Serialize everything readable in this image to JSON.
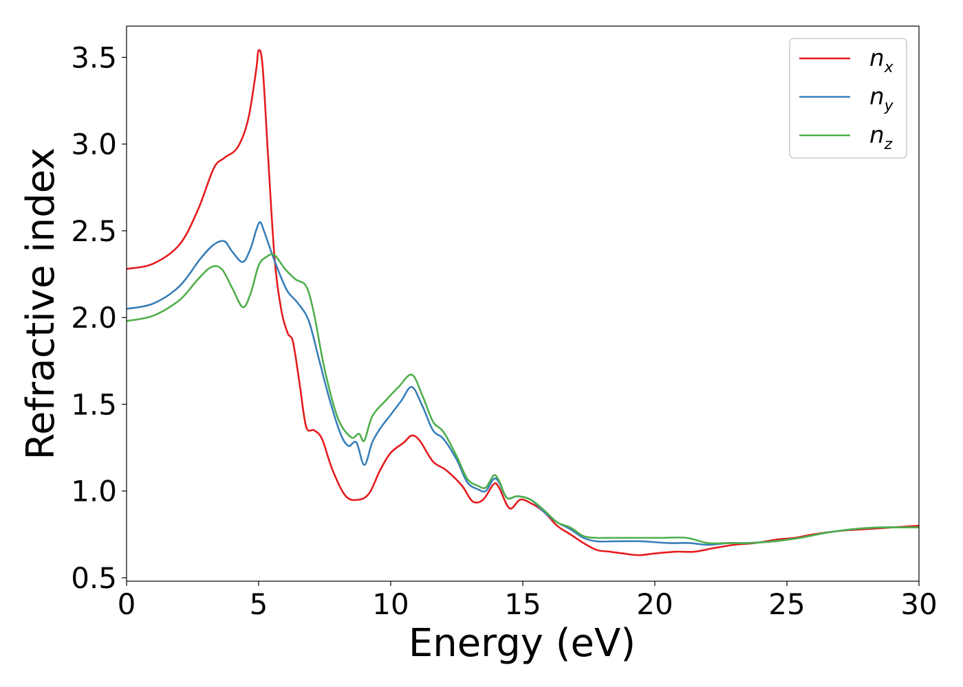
{
  "chart_data": {
    "type": "line",
    "xlabel": "Energy (eV)",
    "ylabel": "Refractive index",
    "xlim": [
      0,
      30
    ],
    "ylim": [
      0.48,
      3.68
    ],
    "x_ticks": [
      0,
      5,
      10,
      15,
      20,
      25,
      30
    ],
    "x_tick_labels": [
      "0",
      "5",
      "10",
      "15",
      "20",
      "25",
      "30"
    ],
    "y_ticks": [
      0.5,
      1.0,
      1.5,
      2.0,
      2.5,
      3.0,
      3.5
    ],
    "y_tick_labels": [
      "0.5",
      "1.0",
      "1.5",
      "2.0",
      "2.5",
      "3.0",
      "3.5"
    ],
    "grid": false,
    "legend_position": "top-right",
    "series": [
      {
        "name": "n_x",
        "label_main": "n",
        "label_sub": "x",
        "color": "#e41a1c",
        "points": [
          [
            0,
            2.28
          ],
          [
            1,
            2.31
          ],
          [
            2,
            2.42
          ],
          [
            2.7,
            2.62
          ],
          [
            3.3,
            2.86
          ],
          [
            3.7,
            2.92
          ],
          [
            4.2,
            2.98
          ],
          [
            4.6,
            3.14
          ],
          [
            4.9,
            3.42
          ],
          [
            5.0,
            3.54
          ],
          [
            5.15,
            3.45
          ],
          [
            5.35,
            2.95
          ],
          [
            5.6,
            2.35
          ],
          [
            5.85,
            2.05
          ],
          [
            6.1,
            1.91
          ],
          [
            6.3,
            1.86
          ],
          [
            6.55,
            1.62
          ],
          [
            6.8,
            1.37
          ],
          [
            7.1,
            1.35
          ],
          [
            7.4,
            1.3
          ],
          [
            7.8,
            1.12
          ],
          [
            8.3,
            0.97
          ],
          [
            8.8,
            0.95
          ],
          [
            9.2,
            0.99
          ],
          [
            9.6,
            1.12
          ],
          [
            10.0,
            1.22
          ],
          [
            10.5,
            1.28
          ],
          [
            10.8,
            1.32
          ],
          [
            11.1,
            1.29
          ],
          [
            11.6,
            1.17
          ],
          [
            12.1,
            1.12
          ],
          [
            12.7,
            1.03
          ],
          [
            13.1,
            0.94
          ],
          [
            13.5,
            0.95
          ],
          [
            13.9,
            1.04
          ],
          [
            14.1,
            1.02
          ],
          [
            14.5,
            0.9
          ],
          [
            14.9,
            0.95
          ],
          [
            15.3,
            0.93
          ],
          [
            15.8,
            0.88
          ],
          [
            16.3,
            0.8
          ],
          [
            16.8,
            0.75
          ],
          [
            17.3,
            0.7
          ],
          [
            17.8,
            0.66
          ],
          [
            18.3,
            0.65
          ],
          [
            18.8,
            0.64
          ],
          [
            19.4,
            0.63
          ],
          [
            20.0,
            0.64
          ],
          [
            20.8,
            0.65
          ],
          [
            21.5,
            0.65
          ],
          [
            22.2,
            0.67
          ],
          [
            23.0,
            0.69
          ],
          [
            23.8,
            0.7
          ],
          [
            24.6,
            0.72
          ],
          [
            25.3,
            0.73
          ],
          [
            26.0,
            0.75
          ],
          [
            27.0,
            0.77
          ],
          [
            28.0,
            0.78
          ],
          [
            29.0,
            0.79
          ],
          [
            30,
            0.8
          ]
        ]
      },
      {
        "name": "n_y",
        "label_main": "n",
        "label_sub": "y",
        "color": "#377eb8",
        "points": [
          [
            0,
            2.05
          ],
          [
            1,
            2.08
          ],
          [
            2,
            2.18
          ],
          [
            2.8,
            2.34
          ],
          [
            3.3,
            2.42
          ],
          [
            3.7,
            2.44
          ],
          [
            4.0,
            2.38
          ],
          [
            4.4,
            2.32
          ],
          [
            4.7,
            2.4
          ],
          [
            4.9,
            2.5
          ],
          [
            5.05,
            2.55
          ],
          [
            5.2,
            2.5
          ],
          [
            5.5,
            2.37
          ],
          [
            5.8,
            2.25
          ],
          [
            6.1,
            2.15
          ],
          [
            6.5,
            2.08
          ],
          [
            6.9,
            1.98
          ],
          [
            7.3,
            1.75
          ],
          [
            7.7,
            1.52
          ],
          [
            8.1,
            1.33
          ],
          [
            8.4,
            1.26
          ],
          [
            8.7,
            1.28
          ],
          [
            9.0,
            1.15
          ],
          [
            9.3,
            1.28
          ],
          [
            9.6,
            1.36
          ],
          [
            10.0,
            1.44
          ],
          [
            10.4,
            1.52
          ],
          [
            10.8,
            1.6
          ],
          [
            11.2,
            1.49
          ],
          [
            11.6,
            1.35
          ],
          [
            12.0,
            1.3
          ],
          [
            12.5,
            1.18
          ],
          [
            12.9,
            1.05
          ],
          [
            13.3,
            1.01
          ],
          [
            13.6,
            1.0
          ],
          [
            13.9,
            1.07
          ],
          [
            14.1,
            1.05
          ],
          [
            14.4,
            0.96
          ],
          [
            14.8,
            0.97
          ],
          [
            15.3,
            0.95
          ],
          [
            15.8,
            0.88
          ],
          [
            16.3,
            0.82
          ],
          [
            16.8,
            0.78
          ],
          [
            17.3,
            0.73
          ],
          [
            17.8,
            0.71
          ],
          [
            18.5,
            0.71
          ],
          [
            19.5,
            0.71
          ],
          [
            20.5,
            0.7
          ],
          [
            21.3,
            0.7
          ],
          [
            22.0,
            0.69
          ],
          [
            22.8,
            0.7
          ],
          [
            23.5,
            0.7
          ],
          [
            24.5,
            0.71
          ],
          [
            25.5,
            0.73
          ],
          [
            26.5,
            0.76
          ],
          [
            27.5,
            0.78
          ],
          [
            28.5,
            0.79
          ],
          [
            29.3,
            0.79
          ],
          [
            30,
            0.79
          ]
        ]
      },
      {
        "name": "n_z",
        "label_main": "n",
        "label_sub": "z",
        "color": "#4daf4a",
        "points": [
          [
            0,
            1.98
          ],
          [
            1,
            2.01
          ],
          [
            2,
            2.1
          ],
          [
            2.7,
            2.22
          ],
          [
            3.2,
            2.29
          ],
          [
            3.6,
            2.28
          ],
          [
            4.0,
            2.17
          ],
          [
            4.4,
            2.06
          ],
          [
            4.7,
            2.14
          ],
          [
            5.0,
            2.3
          ],
          [
            5.3,
            2.35
          ],
          [
            5.6,
            2.36
          ],
          [
            6.0,
            2.28
          ],
          [
            6.4,
            2.22
          ],
          [
            6.8,
            2.18
          ],
          [
            7.1,
            2.02
          ],
          [
            7.5,
            1.7
          ],
          [
            8.0,
            1.42
          ],
          [
            8.5,
            1.31
          ],
          [
            8.8,
            1.33
          ],
          [
            9.0,
            1.29
          ],
          [
            9.3,
            1.43
          ],
          [
            9.8,
            1.52
          ],
          [
            10.3,
            1.6
          ],
          [
            10.8,
            1.67
          ],
          [
            11.2,
            1.55
          ],
          [
            11.6,
            1.4
          ],
          [
            12.0,
            1.34
          ],
          [
            12.5,
            1.2
          ],
          [
            12.9,
            1.07
          ],
          [
            13.3,
            1.03
          ],
          [
            13.6,
            1.02
          ],
          [
            13.9,
            1.09
          ],
          [
            14.1,
            1.06
          ],
          [
            14.4,
            0.96
          ],
          [
            14.8,
            0.97
          ],
          [
            15.3,
            0.95
          ],
          [
            15.8,
            0.89
          ],
          [
            16.3,
            0.82
          ],
          [
            16.8,
            0.79
          ],
          [
            17.3,
            0.74
          ],
          [
            17.8,
            0.73
          ],
          [
            18.5,
            0.73
          ],
          [
            19.5,
            0.73
          ],
          [
            20.3,
            0.73
          ],
          [
            21.2,
            0.73
          ],
          [
            22.0,
            0.7
          ],
          [
            22.7,
            0.7
          ],
          [
            23.5,
            0.7
          ],
          [
            24.5,
            0.71
          ],
          [
            25.5,
            0.73
          ],
          [
            26.5,
            0.76
          ],
          [
            27.5,
            0.78
          ],
          [
            28.5,
            0.79
          ],
          [
            29.5,
            0.79
          ],
          [
            30,
            0.79
          ]
        ]
      }
    ]
  }
}
